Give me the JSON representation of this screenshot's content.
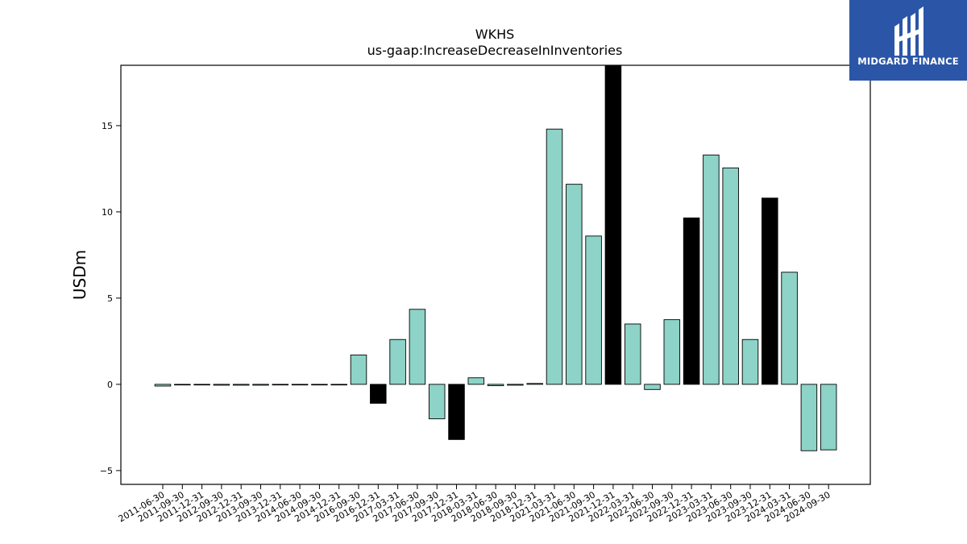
{
  "chart_data": {
    "type": "bar",
    "title": "WKHS",
    "subtitle": "us-gaap:IncreaseDecreaseInInventories",
    "xlabel": "",
    "ylabel": "USDm",
    "ylim": [
      -5.8,
      18.5
    ],
    "yticks": [
      -5,
      0,
      5,
      10,
      15
    ],
    "ytick_labels": [
      "−5",
      "0",
      "5",
      "10",
      "15"
    ],
    "grid": false,
    "categories": [
      "2011-06-30",
      "2011-09-30",
      "2011-12-31",
      "2012-09-30",
      "2012-12-31",
      "2013-09-30",
      "2013-12-31",
      "2014-06-30",
      "2014-09-30",
      "2014-12-31",
      "2016-09-30",
      "2016-12-31",
      "2017-03-31",
      "2017-06-30",
      "2017-09-30",
      "2017-12-31",
      "2018-03-31",
      "2018-06-30",
      "2018-09-30",
      "2018-12-31",
      "2021-03-31",
      "2021-06-30",
      "2021-09-30",
      "2021-12-31",
      "2022-03-31",
      "2022-06-30",
      "2022-09-30",
      "2022-12-31",
      "2023-03-31",
      "2023-06-30",
      "2023-09-30",
      "2023-12-31",
      "2024-03-31",
      "2024-06-30",
      "2024-09-30"
    ],
    "values": [
      -0.1,
      0.0,
      0.0,
      -0.05,
      -0.05,
      -0.05,
      0.0,
      0.0,
      0.0,
      0.0,
      1.7,
      -1.1,
      2.6,
      4.35,
      -2.0,
      -3.2,
      0.38,
      -0.08,
      -0.05,
      0.05,
      14.8,
      11.6,
      8.6,
      19.0,
      3.5,
      -0.3,
      3.75,
      9.65,
      13.3,
      12.55,
      2.6,
      10.8,
      6.5,
      -3.85,
      -3.8
    ],
    "highlight": [
      false,
      false,
      false,
      false,
      false,
      false,
      false,
      false,
      false,
      false,
      false,
      true,
      false,
      false,
      false,
      true,
      false,
      false,
      false,
      false,
      false,
      false,
      false,
      true,
      false,
      false,
      false,
      true,
      false,
      false,
      false,
      true,
      false,
      false,
      false
    ],
    "colors": {
      "normal": "#8dd3c7",
      "highlight": "#000000",
      "edge": "#000000"
    }
  },
  "logo": {
    "text": "MIDGARD FINANCE",
    "bg": "#2b56a8"
  }
}
